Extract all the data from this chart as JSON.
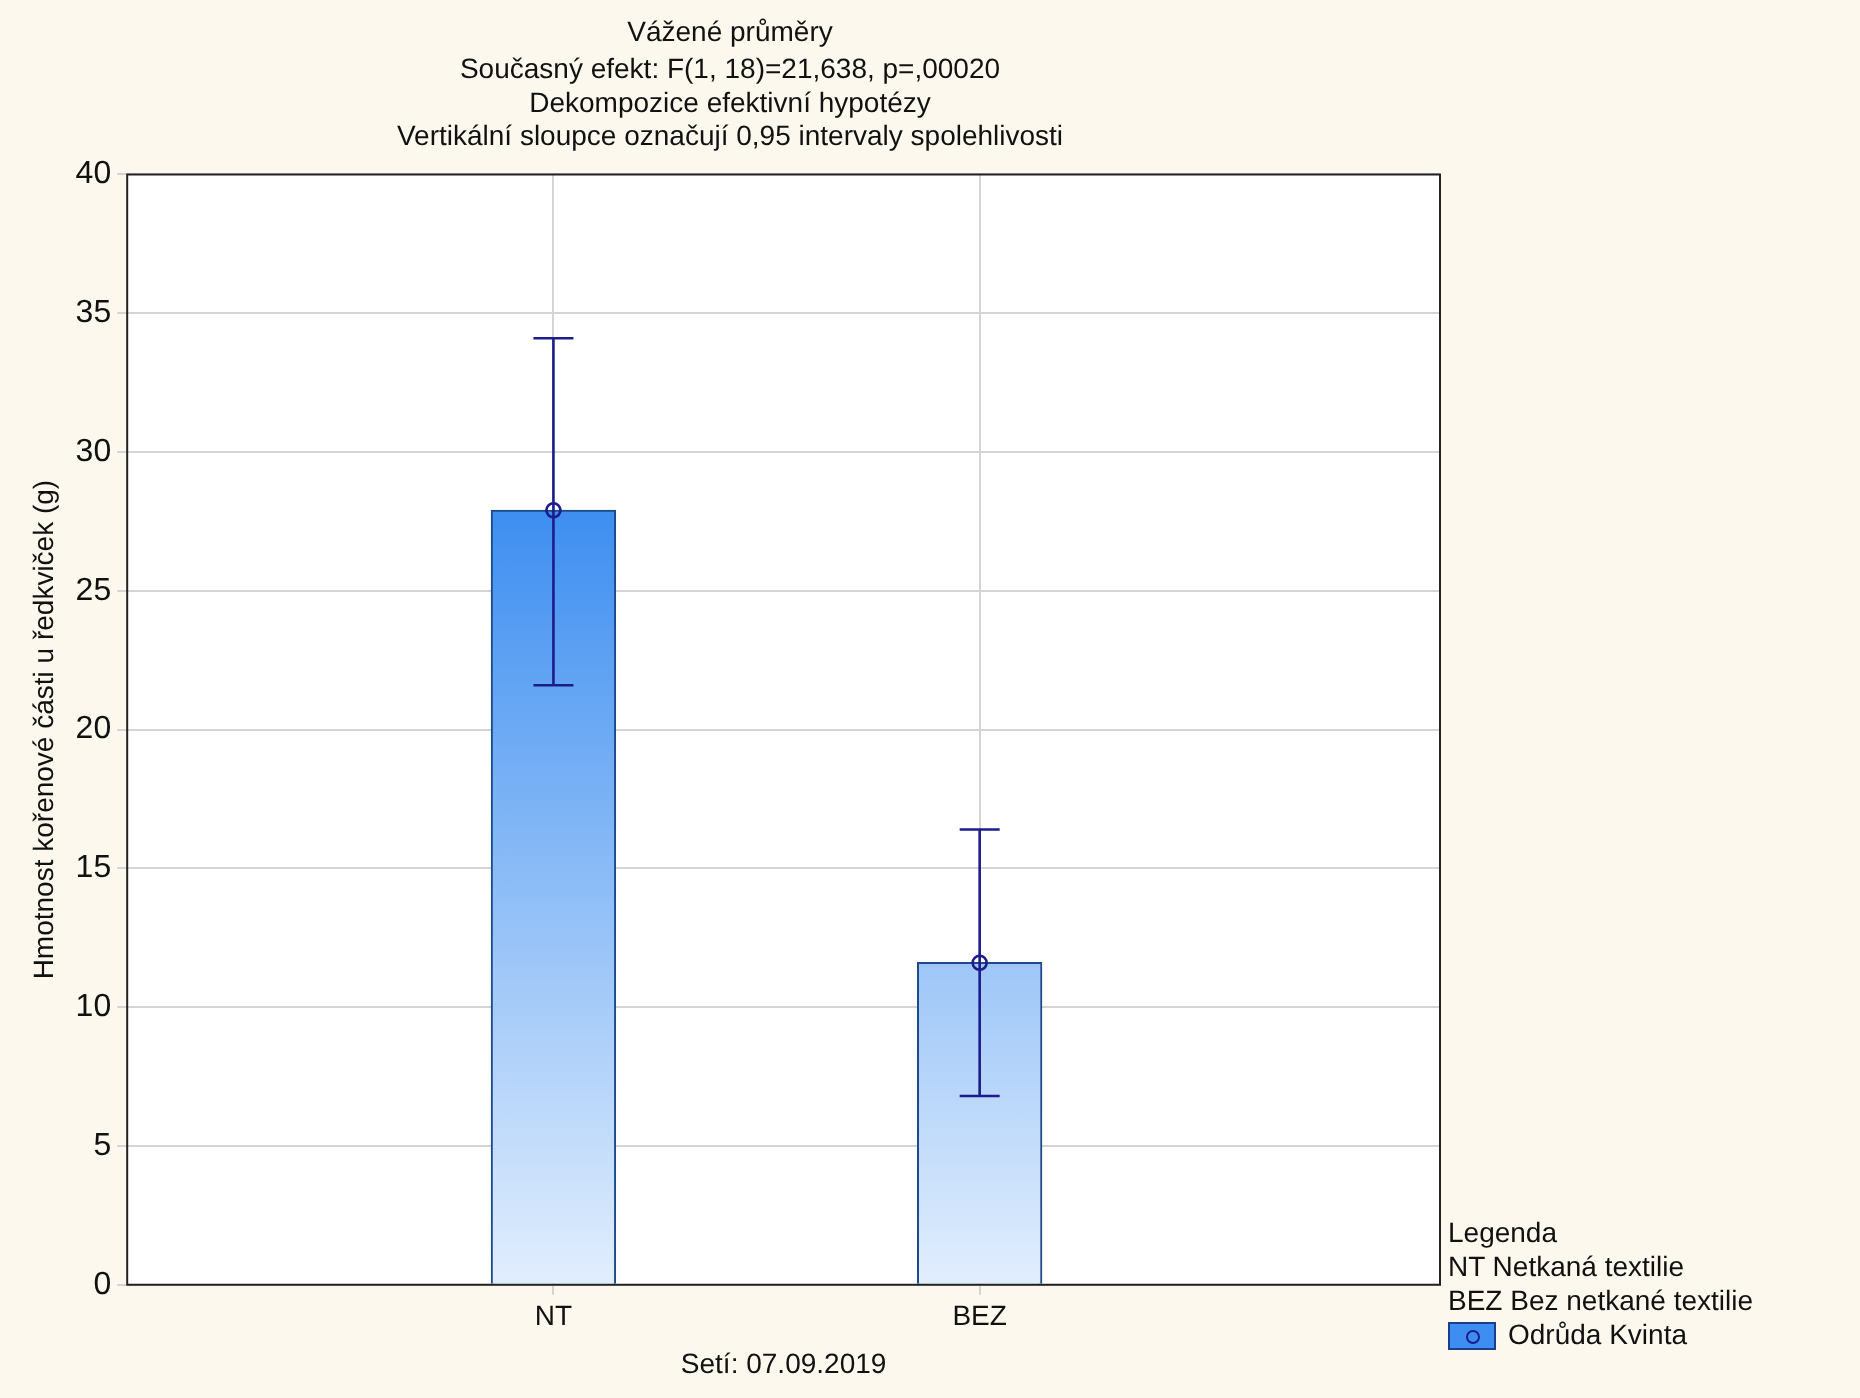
{
  "chart_data": {
    "type": "bar",
    "title": "Vážené průměry",
    "subtitle": "Současný efekt: F(1, 18)=21,638, p=,00020\nDekompozice efektivní hypotézy\nVertikální sloupce označují 0,95 intervaly spolehlivosti",
    "xlabel": "Setí: 07.09.2019",
    "ylabel": "Hmotnost kořenové části u ředkviček (g)",
    "legend_title": "Legenda",
    "annotations": [
      "NT Netkaná textilie",
      "BEZ Bez netkané textilie"
    ],
    "categories": [
      "NT",
      "BEZ"
    ],
    "series": [
      {
        "name": "Odrůda Kvinta",
        "color": "#3d8ef0",
        "values": [
          27.9,
          11.6
        ],
        "errors": [
          [
            21.6,
            34.1
          ],
          [
            6.8,
            16.4
          ]
        ]
      },
      {
        "type": "scatter",
        "x": [
          "NT",
          "BEZ"
        ],
        "color": "#1c1c8c",
        "values": [
          27.9,
          11.6
        ],
        "marker": "circle"
      }
    ],
    "ylim": [
      0,
      40
    ],
    "yticks": [
      0,
      5,
      10,
      15,
      20,
      25,
      30,
      35,
      40
    ],
    "grid": true,
    "legend": "bottom right"
  }
}
